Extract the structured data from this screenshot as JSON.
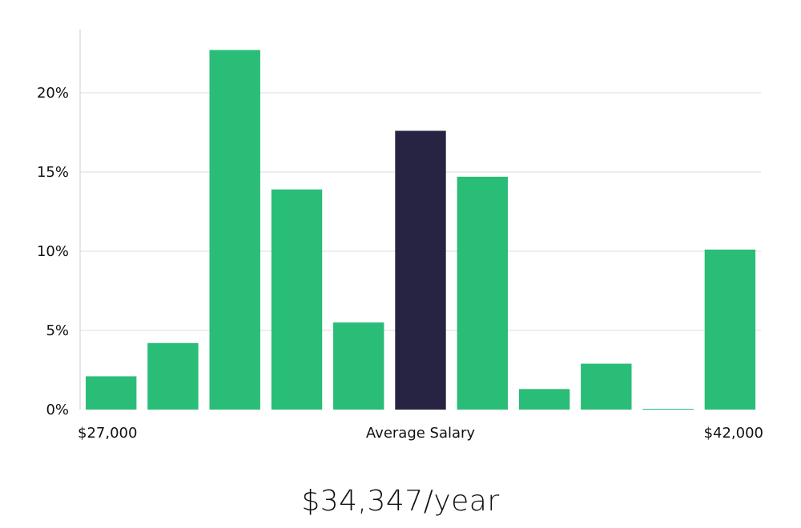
{
  "chart_data": {
    "type": "bar",
    "values": [
      2.1,
      4.2,
      22.7,
      13.9,
      5.5,
      17.6,
      14.7,
      1.3,
      2.9,
      0.0,
      10.1
    ],
    "highlight_index": 5,
    "ylim": [
      0,
      24
    ],
    "yticks": [
      0,
      5,
      10,
      15,
      20
    ],
    "ytick_labels": [
      "0%",
      "5%",
      "10%",
      "15%",
      "20%"
    ],
    "x_left_label": "$27,000",
    "x_center_label": "Average Salary",
    "x_right_label": "$42,000",
    "grid": true,
    "colors": {
      "bar": "#2ABD77",
      "highlight": "#272443",
      "grid": "#dddddd",
      "axis": "#cccccc"
    }
  },
  "headline": "$34,347/year"
}
